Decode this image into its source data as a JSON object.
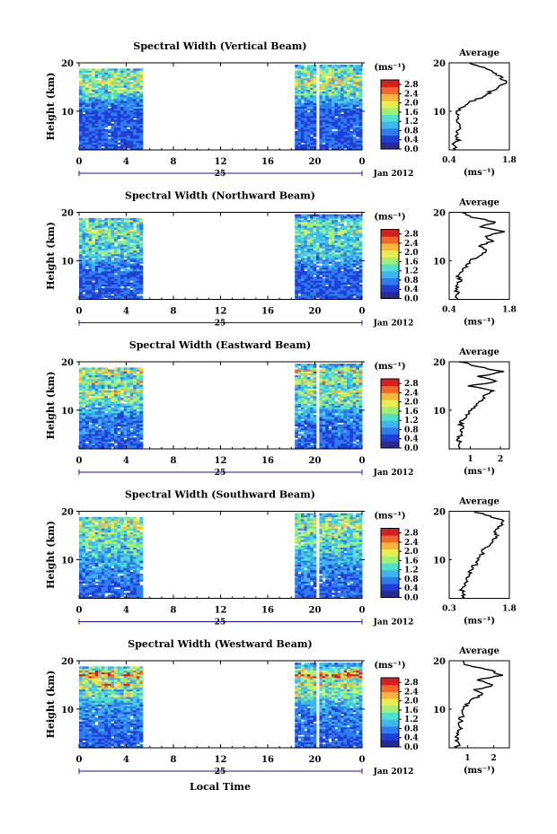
{
  "figure": {
    "date_label": "Jan 2012",
    "x_axis_title": "Local Time",
    "day_label": "25",
    "x_ticks": [
      "0",
      "4",
      "8",
      "12",
      "16",
      "20",
      "0"
    ],
    "y_axis_label": "Height (km)",
    "y_ticks": [
      "20",
      "10"
    ],
    "colorbar_unit": "(ms⁻¹)",
    "colorbar_ticks": [
      "2.8",
      "2.4",
      "2.0",
      "1.6",
      "1.2",
      "0.8",
      "0.4",
      "0.0"
    ],
    "colormap": [
      "#2a2a8a",
      "#1f3fd6",
      "#2f7bf0",
      "#3fb6f2",
      "#4fe0d0",
      "#9ff07a",
      "#e8ee50",
      "#f7b73a",
      "#f06a2a",
      "#d81f1f"
    ],
    "average_title": "Average",
    "average_unit": "(ms⁻¹)"
  },
  "chart_data": [
    {
      "type": "heatmap",
      "title": "Spectral Width (Vertical Beam)",
      "xlabel": "Local Time",
      "ylabel": "Height (km)",
      "xlim": [
        0,
        24
      ],
      "ylim": [
        2,
        20
      ],
      "data_windows_hours": [
        [
          0,
          5.4
        ],
        [
          18.3,
          24
        ]
      ],
      "gap_hours": [
        20.0,
        20.25
      ],
      "colorbar_range": [
        0.0,
        3.0
      ],
      "profile": {
        "title": "Average",
        "xlim": [
          0.4,
          1.8
        ],
        "xticks": [
          "0.4",
          "1.8"
        ],
        "heights_km": [
          2,
          3,
          4,
          5,
          6,
          7,
          8,
          9,
          10,
          11,
          12,
          13,
          14,
          15,
          16,
          17,
          18,
          19,
          20
        ],
        "values": [
          0.55,
          0.5,
          0.6,
          0.55,
          0.6,
          0.65,
          0.55,
          0.6,
          0.6,
          0.75,
          0.9,
          1.2,
          1.35,
          1.55,
          1.7,
          1.6,
          1.45,
          1.2,
          0.85
        ]
      }
    },
    {
      "type": "heatmap",
      "title": "Spectral Width (Northward Beam)",
      "xlabel": "Local Time",
      "ylabel": "Height (km)",
      "xlim": [
        0,
        24
      ],
      "ylim": [
        2,
        20
      ],
      "data_windows_hours": [
        [
          0,
          5.4
        ],
        [
          18.3,
          24
        ]
      ],
      "gap_hours": null,
      "colorbar_range": [
        0.0,
        3.0
      ],
      "profile": {
        "title": "Average",
        "xlim": [
          0.4,
          1.8
        ],
        "xticks": [
          "0.4",
          "1.8"
        ],
        "heights_km": [
          2,
          3,
          4,
          5,
          6,
          7,
          8,
          9,
          10,
          11,
          12,
          13,
          14,
          15,
          16,
          17,
          18,
          19,
          20
        ],
        "values": [
          0.55,
          0.6,
          0.55,
          0.6,
          0.65,
          0.6,
          0.7,
          0.8,
          0.9,
          1.1,
          1.3,
          1.1,
          1.4,
          1.2,
          1.7,
          1.1,
          1.5,
          0.9,
          0.7
        ]
      }
    },
    {
      "type": "heatmap",
      "title": "Spectral Width (Eastward Beam)",
      "xlabel": "Local Time",
      "ylabel": "Height (km)",
      "xlim": [
        0,
        24
      ],
      "ylim": [
        2,
        20
      ],
      "data_windows_hours": [
        [
          0,
          5.4
        ],
        [
          18.3,
          24
        ]
      ],
      "gap_hours": [
        20.0,
        20.25
      ],
      "colorbar_range": [
        0.0,
        3.0
      ],
      "profile": {
        "title": "Average",
        "xlim": [
          0.3,
          2.3
        ],
        "xticks": [
          "1",
          "2"
        ],
        "heights_km": [
          2,
          3,
          4,
          5,
          6,
          7,
          8,
          9,
          10,
          11,
          12,
          13,
          14,
          15,
          16,
          17,
          18,
          19,
          20
        ],
        "values": [
          0.6,
          0.65,
          0.6,
          0.7,
          0.75,
          0.7,
          0.75,
          0.9,
          1.0,
          1.2,
          1.4,
          1.5,
          1.7,
          1.0,
          1.9,
          1.3,
          2.1,
          1.2,
          0.7
        ]
      }
    },
    {
      "type": "heatmap",
      "title": "Spectral Width (Southward Beam)",
      "xlabel": "Local Time",
      "ylabel": "Height (km)",
      "xlim": [
        0,
        24
      ],
      "ylim": [
        2,
        20
      ],
      "data_windows_hours": [
        [
          0,
          5.4
        ],
        [
          18.3,
          24
        ]
      ],
      "gap_hours": [
        20.0,
        20.25
      ],
      "colorbar_range": [
        0.0,
        3.0
      ],
      "profile": {
        "title": "Average",
        "xlim": [
          0.3,
          1.8
        ],
        "xticks": [
          "0.3",
          "1.8"
        ],
        "heights_km": [
          2,
          3,
          4,
          5,
          6,
          7,
          8,
          9,
          10,
          11,
          12,
          13,
          14,
          15,
          16,
          17,
          18,
          19,
          20
        ],
        "values": [
          0.6,
          0.65,
          0.6,
          0.7,
          0.75,
          0.8,
          0.85,
          0.95,
          1.0,
          1.1,
          1.15,
          1.3,
          1.4,
          1.5,
          1.45,
          1.6,
          1.7,
          1.3,
          0.9
        ]
      }
    },
    {
      "type": "heatmap",
      "title": "Spectral Width (Westward Beam)",
      "xlabel": "Local Time",
      "ylabel": "Height (km)",
      "xlim": [
        0,
        24
      ],
      "ylim": [
        2,
        20
      ],
      "data_windows_hours": [
        [
          0,
          5.4
        ],
        [
          18.3,
          24
        ]
      ],
      "gap_hours": [
        20.0,
        20.25
      ],
      "colorbar_range": [
        0.0,
        3.0
      ],
      "profile": {
        "title": "Average",
        "xlim": [
          0.3,
          2.6
        ],
        "xticks": [
          "1",
          "2"
        ],
        "heights_km": [
          2,
          3,
          4,
          5,
          6,
          7,
          8,
          9,
          10,
          11,
          12,
          13,
          14,
          15,
          16,
          17,
          18,
          19,
          20
        ],
        "values": [
          0.6,
          0.65,
          0.6,
          0.65,
          0.7,
          0.7,
          0.75,
          0.8,
          0.85,
          1.0,
          1.2,
          1.6,
          1.3,
          2.0,
          1.4,
          2.3,
          1.9,
          1.0,
          0.8
        ]
      }
    }
  ]
}
